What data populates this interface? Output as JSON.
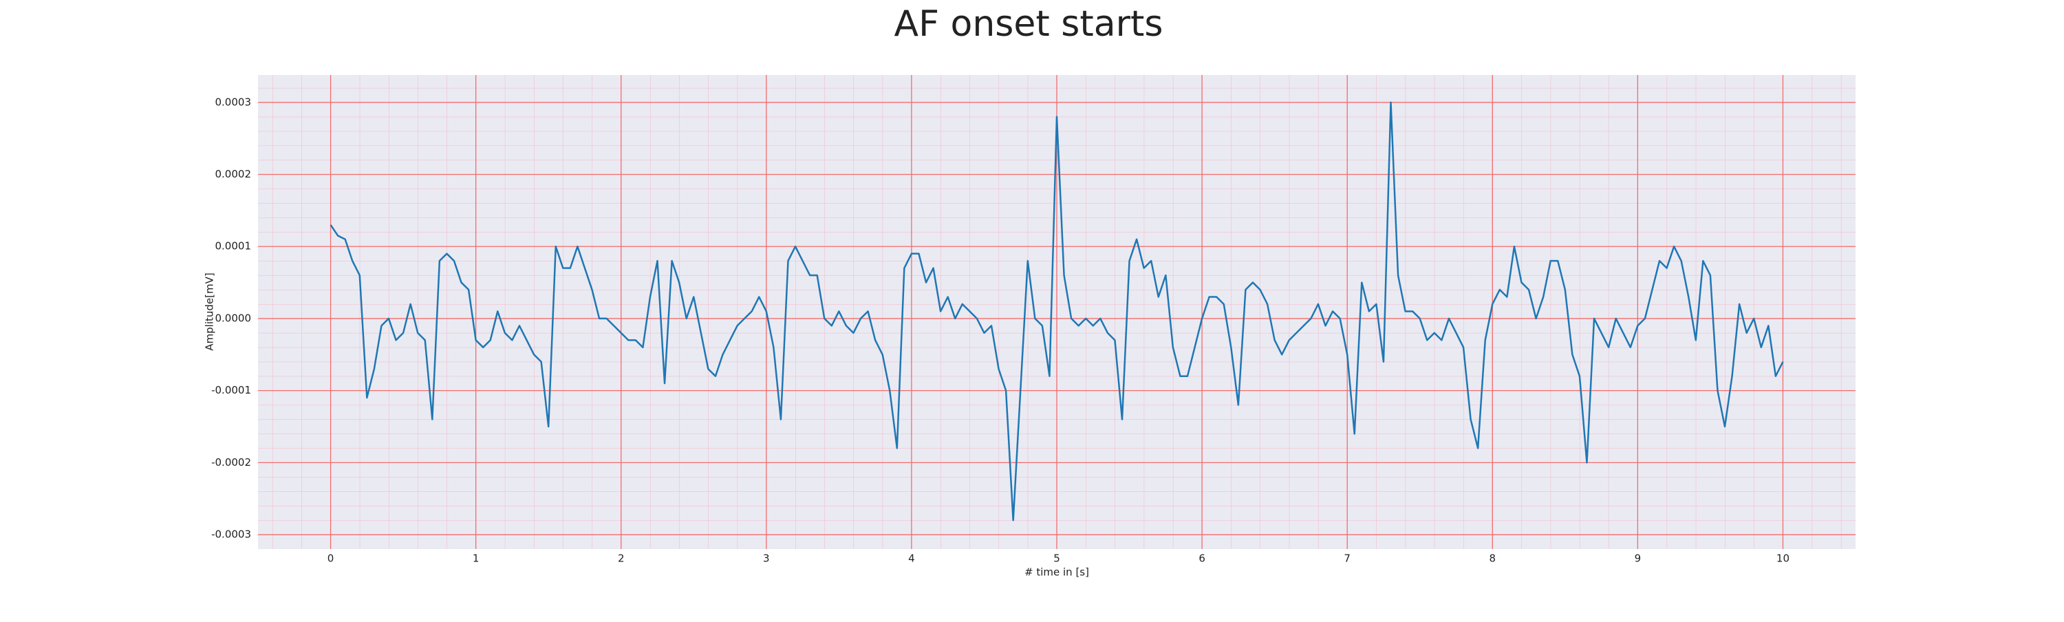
{
  "chart_data": {
    "type": "line",
    "title": "AF onset starts",
    "x_label": "# time in [s]",
    "y_label": "Amplitude[mV]",
    "x": [
      0,
      0.05,
      0.1,
      0.15,
      0.2,
      0.25,
      0.3,
      0.35,
      0.4,
      0.45,
      0.5,
      0.55,
      0.6,
      0.65,
      0.7,
      0.75,
      0.8,
      0.85,
      0.9,
      0.95,
      1,
      1.05,
      1.1,
      1.15,
      1.2,
      1.25,
      1.3,
      1.35,
      1.4,
      1.45,
      1.5,
      1.55,
      1.6,
      1.65,
      1.7,
      1.75,
      1.8,
      1.85,
      1.9,
      1.95,
      2,
      2.05,
      2.1,
      2.15,
      2.2,
      2.25,
      2.3,
      2.35,
      2.4,
      2.45,
      2.5,
      2.55,
      2.6,
      2.65,
      2.7,
      2.75,
      2.8,
      2.85,
      2.9,
      2.95,
      3,
      3.05,
      3.1,
      3.15,
      3.2,
      3.25,
      3.3,
      3.35,
      3.4,
      3.45,
      3.5,
      3.55,
      3.6,
      3.65,
      3.7,
      3.75,
      3.8,
      3.85,
      3.9,
      3.95,
      4,
      4.05,
      4.1,
      4.15,
      4.2,
      4.25,
      4.3,
      4.35,
      4.4,
      4.45,
      4.5,
      4.55,
      4.6,
      4.65,
      4.7,
      4.75,
      4.8,
      4.85,
      4.9,
      4.95,
      5,
      5.05,
      5.1,
      5.15,
      5.2,
      5.25,
      5.3,
      5.35,
      5.4,
      5.45,
      5.5,
      5.55,
      5.6,
      5.65,
      5.7,
      5.75,
      5.8,
      5.85,
      5.9,
      5.95,
      6,
      6.05,
      6.1,
      6.15,
      6.2,
      6.25,
      6.3,
      6.35,
      6.4,
      6.45,
      6.5,
      6.55,
      6.6,
      6.65,
      6.7,
      6.75,
      6.8,
      6.85,
      6.9,
      6.95,
      7,
      7.05,
      7.1,
      7.15,
      7.2,
      7.25,
      7.3,
      7.35,
      7.4,
      7.45,
      7.5,
      7.55,
      7.6,
      7.65,
      7.7,
      7.75,
      7.8,
      7.85,
      7.9,
      7.95,
      8,
      8.05,
      8.1,
      8.15,
      8.2,
      8.25,
      8.3,
      8.35,
      8.4,
      8.45,
      8.5,
      8.55,
      8.6,
      8.65,
      8.7,
      8.75,
      8.8,
      8.85,
      8.9,
      8.95,
      9,
      9.05,
      9.1,
      9.15,
      9.2,
      9.25,
      9.3,
      9.35,
      9.4,
      9.45,
      9.5,
      9.55,
      9.6,
      9.65,
      9.7,
      9.75,
      9.8,
      9.85,
      9.9,
      9.95,
      10
    ],
    "values": [
      0.00013,
      0.000115,
      0.00011,
      8e-05,
      6e-05,
      -0.00011,
      -7e-05,
      -1e-05,
      0,
      -3e-05,
      -2e-05,
      2e-05,
      -2e-05,
      -3e-05,
      -0.00014,
      8e-05,
      9e-05,
      8e-05,
      5e-05,
      4e-05,
      -3e-05,
      -4e-05,
      -3e-05,
      1e-05,
      -2e-05,
      -3e-05,
      -1e-05,
      -3e-05,
      -5e-05,
      -6e-05,
      -0.00015,
      0.0001,
      7e-05,
      7e-05,
      0.0001,
      7e-05,
      4e-05,
      0,
      0,
      -1e-05,
      -2e-05,
      -3e-05,
      -3e-05,
      -4e-05,
      3e-05,
      8e-05,
      -9e-05,
      8e-05,
      5e-05,
      0,
      3e-05,
      -2e-05,
      -7e-05,
      -8e-05,
      -5e-05,
      -3e-05,
      -1e-05,
      0,
      1e-05,
      3e-05,
      1e-05,
      -4e-05,
      -0.00014,
      8e-05,
      0.0001,
      8e-05,
      6e-05,
      6e-05,
      0,
      -1e-05,
      1e-05,
      -1e-05,
      -2e-05,
      0,
      1e-05,
      -3e-05,
      -5e-05,
      -0.0001,
      -0.00018,
      7e-05,
      9e-05,
      9e-05,
      5e-05,
      7e-05,
      1e-05,
      3e-05,
      0,
      2e-05,
      1e-05,
      0,
      -2e-05,
      -1e-05,
      -7e-05,
      -0.0001,
      -0.00028,
      -0.0001,
      8e-05,
      0,
      -1e-05,
      -8e-05,
      0.00028,
      6e-05,
      0,
      -1e-05,
      0,
      -1e-05,
      0,
      -2e-05,
      -3e-05,
      -0.00014,
      8e-05,
      0.00011,
      7e-05,
      8e-05,
      3e-05,
      6e-05,
      -4e-05,
      -8e-05,
      -8e-05,
      -4e-05,
      0,
      3e-05,
      3e-05,
      2e-05,
      -4e-05,
      -0.00012,
      4e-05,
      5e-05,
      4e-05,
      2e-05,
      -3e-05,
      -5e-05,
      -3e-05,
      -2e-05,
      -1e-05,
      0,
      2e-05,
      -1e-05,
      1e-05,
      0,
      -5e-05,
      -0.00016,
      5e-05,
      1e-05,
      2e-05,
      -6e-05,
      0.0003,
      6e-05,
      1e-05,
      1e-05,
      0,
      -3e-05,
      -2e-05,
      -3e-05,
      0,
      -2e-05,
      -4e-05,
      -0.00014,
      -0.00018,
      -3e-05,
      2e-05,
      4e-05,
      3e-05,
      0.0001,
      5e-05,
      4e-05,
      0,
      3e-05,
      8e-05,
      8e-05,
      4e-05,
      -5e-05,
      -8e-05,
      -0.0002,
      0,
      -2e-05,
      -4e-05,
      0,
      -2e-05,
      -4e-05,
      -1e-05,
      0,
      4e-05,
      8e-05,
      7e-05,
      0.0001,
      8e-05,
      3e-05,
      -3e-05,
      8e-05,
      6e-05,
      -0.0001,
      -0.00015,
      -8e-05,
      2e-05,
      -2e-05,
      0,
      -4e-05,
      -1e-05,
      -8e-05,
      -6e-05
    ],
    "color": "#1f77b4",
    "xlim": [
      -0.5,
      10.5
    ],
    "xticks": [
      0,
      1,
      2,
      3,
      4,
      5,
      6,
      7,
      8,
      9,
      10
    ],
    "ylim": [
      -0.00032,
      0.000338
    ],
    "yticks": [
      -0.0003,
      -0.0002,
      -0.0001,
      {
        "value": 0,
        "label": "0.0000"
      },
      0.0001,
      0.0002,
      0.0003
    ],
    "grid": true
  }
}
